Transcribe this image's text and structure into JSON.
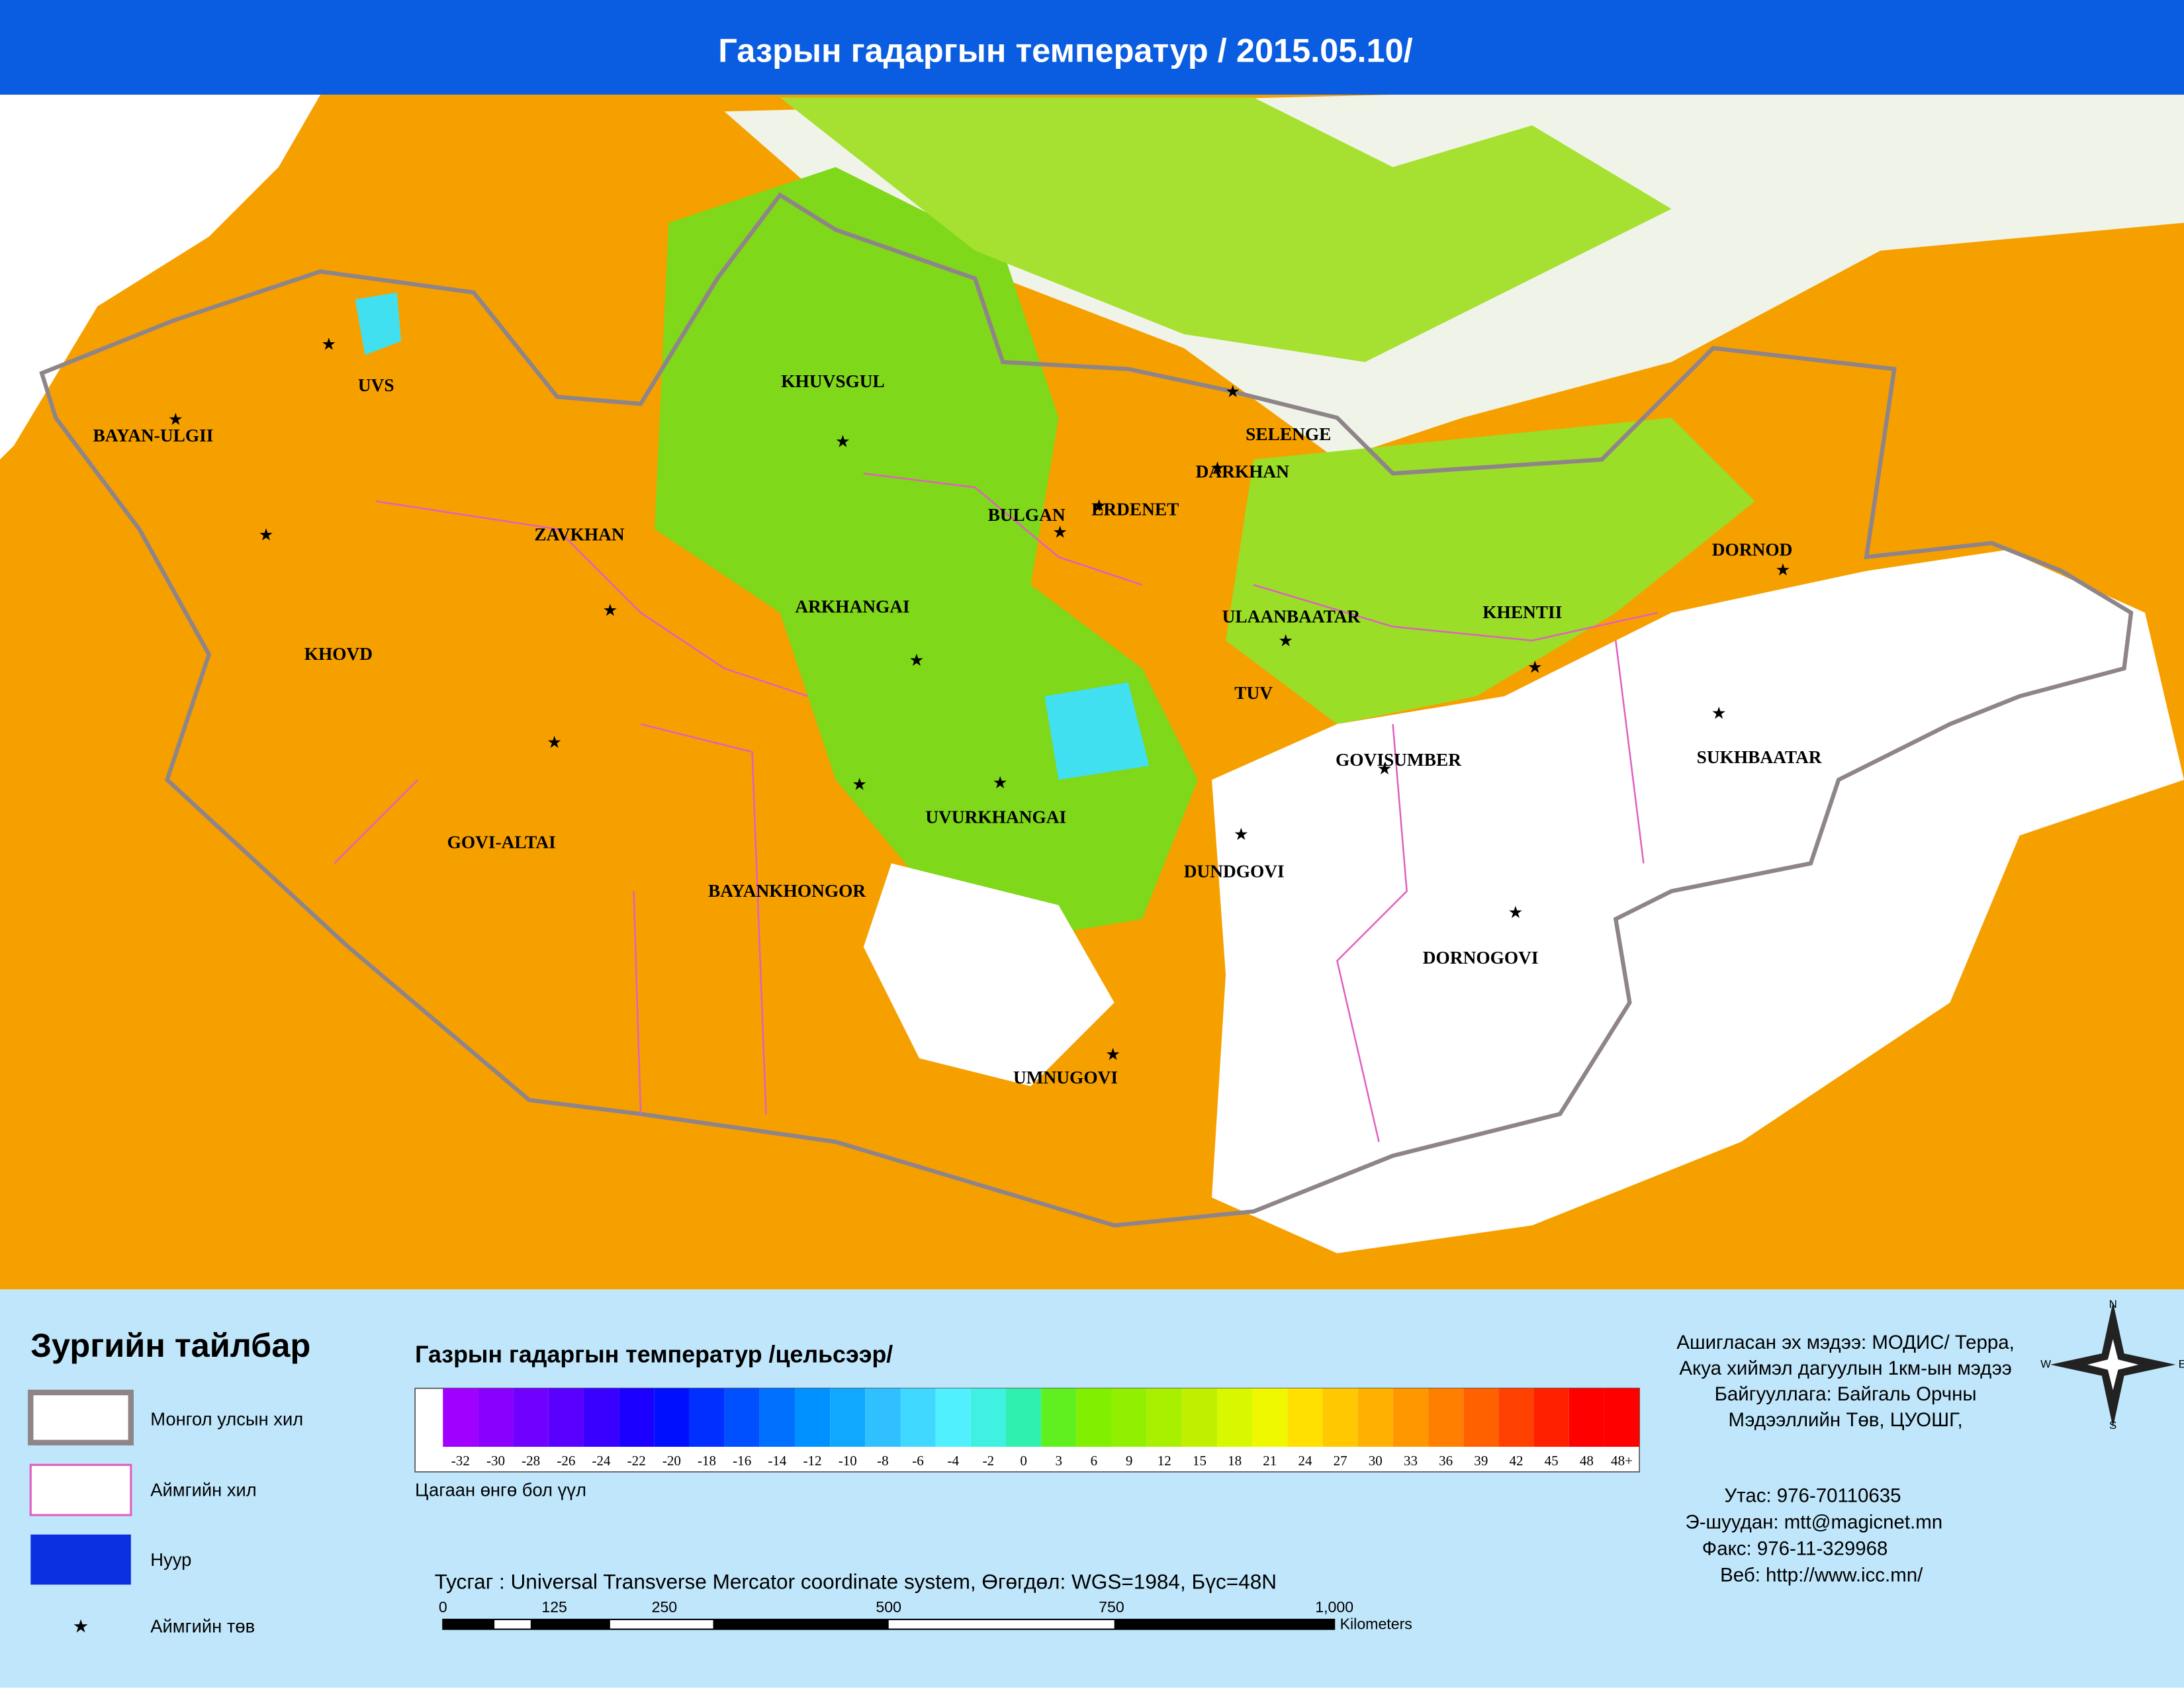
{
  "header": {
    "title": "Газрын гадаргын температур / 2015.05.10/"
  },
  "map": {
    "labels": [
      "UVS",
      "BAYAN-ULGII",
      "KHUVSGUL",
      "SELENGE",
      "DARKHAN",
      "BULGAN",
      "ERDENET",
      "ZAVKHAN",
      "ARKHANGAI",
      "ULAANBAATAR",
      "KHENTII",
      "DORNOD",
      "KHOVD",
      "TUV",
      "GOVISUMBER",
      "SUKHBAATAR",
      "GOVI-ALTAI",
      "UVURKHANGAI",
      "BAYANKHONGOR",
      "DUNDGOVI",
      "DORNOGOVI",
      "UMNUGOVI"
    ]
  },
  "legend": {
    "title": "Зургийн тайлбар",
    "items": [
      "Монгол улсын хил",
      "Аймгийн хил",
      "Нуур",
      "Аймгийн төв"
    ]
  },
  "colorbar": {
    "title": "Газрын гадаргын температур /цельсээр/",
    "labels": [
      "-32",
      "-30",
      "-28",
      "-26",
      "-24",
      "-22",
      "-20",
      "-18",
      "-16",
      "-14",
      "-12",
      "-10",
      "-8",
      "-6",
      "-4",
      "-2",
      "0",
      "3",
      "6",
      "9",
      "12",
      "15",
      "18",
      "21",
      "24",
      "27",
      "30",
      "33",
      "36",
      "39",
      "42",
      "45",
      "48",
      "48+"
    ],
    "colors": [
      "#a000ff",
      "#8a00ff",
      "#7000ff",
      "#5a00ff",
      "#3a00ff",
      "#1c00ff",
      "#0010ff",
      "#0030ff",
      "#0050ff",
      "#0070ff",
      "#0090ff",
      "#10a8ff",
      "#30c0ff",
      "#40d8ff",
      "#50f0ff",
      "#40f0e0",
      "#30f0b0",
      "#60f020",
      "#80f000",
      "#90f000",
      "#a8f000",
      "#c0f000",
      "#d8f800",
      "#f0f800",
      "#ffe000",
      "#ffc800",
      "#ffb000",
      "#ff9800",
      "#ff8000",
      "#ff6000",
      "#ff4000",
      "#ff2000",
      "#ff0000",
      "#ff0000"
    ],
    "note": "Цагаан өнгө бол үүл"
  },
  "projection": "Тусгаг : Universal Transverse Mercator coordinate system, Өгөгдөл: WGS=1984, Бүс=48N",
  "scale": {
    "labels": [
      "0",
      "125",
      "250",
      "500",
      "750",
      "1,000"
    ],
    "unit": "Kilometers"
  },
  "info": {
    "lines": [
      "Ашигласан эх мэдээ: МОДИС/ Терра,",
      "Акуа хиймэл дагуулын 1км-ын мэдээ",
      "Байгууллага: Байгаль Орчны",
      "Мэдээллийн Төв, ЦУОШГ,"
    ],
    "contacts": [
      "Утас:   976-70110635",
      "Э-шуудан:     mtt@magicnet.mn",
      "Факс:  976-11-329968",
      "Веб:      http://www.icc.mn/"
    ]
  },
  "compass": [
    "N",
    "E",
    "W",
    "S"
  ]
}
